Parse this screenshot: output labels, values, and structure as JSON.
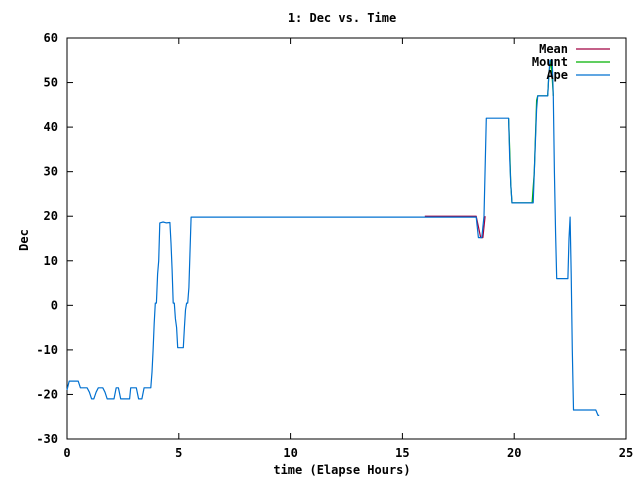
{
  "chart_data": {
    "type": "line",
    "title": "1: Dec vs. Time",
    "xlabel": "time (Elapse Hours)",
    "ylabel": "Dec",
    "xlim": [
      0,
      25
    ],
    "ylim": [
      -30,
      60
    ],
    "xticks": [
      0,
      5,
      10,
      15,
      20,
      25
    ],
    "yticks": [
      -30,
      -20,
      -10,
      0,
      10,
      20,
      30,
      40,
      50,
      60
    ],
    "grid": false,
    "legend_position": "top-right",
    "series": [
      {
        "name": "Mean",
        "color": "#a00040",
        "points": [
          [
            16.0,
            20
          ],
          [
            18.3,
            20
          ],
          [
            18.5,
            15.2
          ],
          [
            18.6,
            15.2
          ],
          [
            18.7,
            20
          ]
        ]
      },
      {
        "name": "Mount",
        "color": "#00b000",
        "points": [
          [
            19.75,
            42
          ],
          [
            19.8,
            35
          ],
          [
            19.85,
            27
          ],
          [
            19.9,
            23
          ],
          [
            20.8,
            23
          ],
          [
            20.9,
            30
          ],
          [
            21.0,
            46
          ],
          [
            21.05,
            47
          ],
          [
            21.5,
            47
          ],
          [
            21.55,
            52
          ],
          [
            21.65,
            55
          ],
          [
            21.75,
            47
          ]
        ]
      },
      {
        "name": "Ape",
        "color": "#0070d0",
        "points": [
          [
            0.0,
            -19
          ],
          [
            0.1,
            -17
          ],
          [
            0.5,
            -17
          ],
          [
            0.6,
            -18.5
          ],
          [
            0.9,
            -18.5
          ],
          [
            1.0,
            -19.5
          ],
          [
            1.1,
            -21
          ],
          [
            1.2,
            -21
          ],
          [
            1.3,
            -19.5
          ],
          [
            1.4,
            -18.5
          ],
          [
            1.6,
            -18.5
          ],
          [
            1.7,
            -19.5
          ],
          [
            1.8,
            -21
          ],
          [
            2.1,
            -21
          ],
          [
            2.2,
            -18.5
          ],
          [
            2.3,
            -18.5
          ],
          [
            2.4,
            -21
          ],
          [
            2.8,
            -21
          ],
          [
            2.85,
            -18.5
          ],
          [
            3.1,
            -18.5
          ],
          [
            3.2,
            -21
          ],
          [
            3.35,
            -21
          ],
          [
            3.45,
            -18.5
          ],
          [
            3.6,
            -18.5
          ],
          [
            3.7,
            -18.5
          ],
          [
            3.75,
            -18.5
          ],
          [
            3.8,
            -15
          ],
          [
            3.85,
            -10
          ],
          [
            3.9,
            -4
          ],
          [
            3.95,
            0.5
          ],
          [
            4.0,
            0.5
          ],
          [
            4.05,
            7
          ],
          [
            4.1,
            10
          ],
          [
            4.15,
            18.5
          ],
          [
            4.3,
            18.7
          ],
          [
            4.45,
            18.5
          ],
          [
            4.6,
            18.6
          ],
          [
            4.65,
            14
          ],
          [
            4.7,
            8
          ],
          [
            4.75,
            0.5
          ],
          [
            4.8,
            0.5
          ],
          [
            4.85,
            -3
          ],
          [
            4.9,
            -5
          ],
          [
            4.95,
            -9.5
          ],
          [
            5.2,
            -9.5
          ],
          [
            5.25,
            -5
          ],
          [
            5.3,
            -1
          ],
          [
            5.35,
            0.5
          ],
          [
            5.4,
            0.5
          ],
          [
            5.45,
            4
          ],
          [
            5.5,
            12
          ],
          [
            5.55,
            19.8
          ],
          [
            10.0,
            19.8
          ],
          [
            16.0,
            19.8
          ],
          [
            18.3,
            19.8
          ],
          [
            18.4,
            15.2
          ],
          [
            18.55,
            15.2
          ],
          [
            18.65,
            20
          ],
          [
            18.75,
            42
          ],
          [
            19.75,
            42
          ],
          [
            19.8,
            33
          ],
          [
            19.85,
            27
          ],
          [
            19.9,
            23
          ],
          [
            20.85,
            23
          ],
          [
            20.9,
            30
          ],
          [
            21.0,
            44
          ],
          [
            21.05,
            47
          ],
          [
            21.5,
            47
          ],
          [
            21.55,
            52
          ],
          [
            21.6,
            55
          ],
          [
            21.7,
            55
          ],
          [
            21.75,
            47
          ],
          [
            21.8,
            30
          ],
          [
            21.85,
            16
          ],
          [
            21.9,
            6
          ],
          [
            22.4,
            6
          ],
          [
            22.45,
            15
          ],
          [
            22.5,
            19.8
          ],
          [
            22.55,
            7
          ],
          [
            22.6,
            -10
          ],
          [
            22.65,
            -23.5
          ],
          [
            23.5,
            -23.5
          ],
          [
            23.65,
            -23.5
          ],
          [
            23.75,
            -24.7
          ],
          [
            23.8,
            -24.7
          ]
        ]
      }
    ]
  }
}
